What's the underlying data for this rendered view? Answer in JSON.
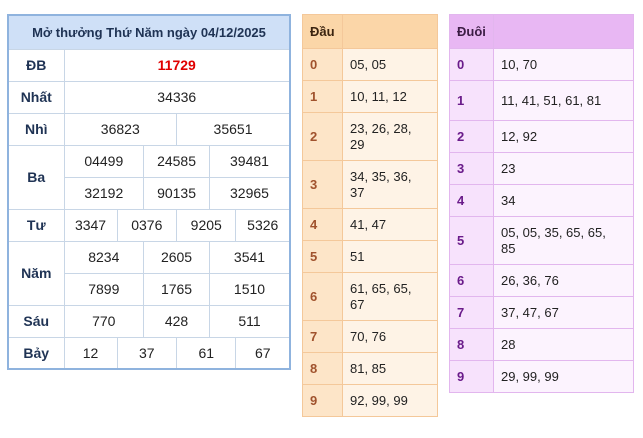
{
  "results": {
    "title": "Mở thưởng Thứ Năm ngày 04/12/2025",
    "db": {
      "label": "ĐB",
      "value": "11729"
    },
    "nhat": {
      "label": "Nhất",
      "value": "34336"
    },
    "nhi": {
      "label": "Nhì",
      "values": [
        "36823",
        "35651"
      ]
    },
    "ba": {
      "label": "Ba",
      "values": [
        "04499",
        "24585",
        "39481",
        "32192",
        "90135",
        "32965"
      ]
    },
    "tu": {
      "label": "Tư",
      "values": [
        "3347",
        "0376",
        "9205",
        "5326"
      ]
    },
    "nam": {
      "label": "Năm",
      "values": [
        "8234",
        "2605",
        "3541",
        "7899",
        "1765",
        "1510"
      ]
    },
    "sau": {
      "label": "Sáu",
      "values": [
        "770",
        "428",
        "511"
      ]
    },
    "bay": {
      "label": "Bảy",
      "values": [
        "12",
        "37",
        "61",
        "67"
      ]
    }
  },
  "dau": {
    "header": "Đầu",
    "rows": [
      {
        "key": "0",
        "value": "05, 05"
      },
      {
        "key": "1",
        "value": "10, 11, 12"
      },
      {
        "key": "2",
        "value": "23, 26, 28, 29"
      },
      {
        "key": "3",
        "value": "34, 35, 36, 37"
      },
      {
        "key": "4",
        "value": "41, 47"
      },
      {
        "key": "5",
        "value": "51"
      },
      {
        "key": "6",
        "value": "61, 65, 65, 67"
      },
      {
        "key": "7",
        "value": "70, 76"
      },
      {
        "key": "8",
        "value": "81, 85"
      },
      {
        "key": "9",
        "value": "92, 99, 99"
      }
    ]
  },
  "duoi": {
    "header": "Đuôi",
    "rows": [
      {
        "key": "0",
        "value": "10, 70"
      },
      {
        "key": "1",
        "value": "11, 41, 51, 61, 81"
      },
      {
        "key": "2",
        "value": "12, 92"
      },
      {
        "key": "3",
        "value": "23"
      },
      {
        "key": "4",
        "value": "34"
      },
      {
        "key": "5",
        "value": "05, 05, 35, 65, 65, 85"
      },
      {
        "key": "6",
        "value": "26, 36, 76"
      },
      {
        "key": "7",
        "value": "37, 47, 67"
      },
      {
        "key": "8",
        "value": "28"
      },
      {
        "key": "9",
        "value": "29, 99, 99"
      }
    ]
  },
  "colors": {
    "special": "#e00000",
    "results_header": "#cfe0f7",
    "dau_header": "#fbd6a8",
    "duoi_header": "#e8b7f3"
  }
}
